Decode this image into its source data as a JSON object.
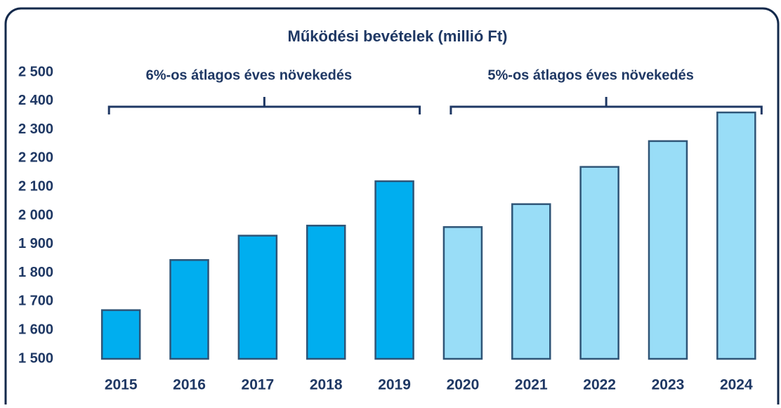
{
  "chart_data": {
    "type": "bar",
    "title": "Működési bevételek (millió Ft)",
    "categories": [
      "2015",
      "2016",
      "2017",
      "2018",
      "2019",
      "2020",
      "2021",
      "2022",
      "2023",
      "2024"
    ],
    "values": [
      1670,
      1845,
      1930,
      1965,
      2120,
      1960,
      2040,
      2170,
      2260,
      2360
    ],
    "colors": [
      "#00aeef",
      "#00aeef",
      "#00aeef",
      "#00aeef",
      "#00aeef",
      "#99ddf7",
      "#99ddf7",
      "#99ddf7",
      "#99ddf7",
      "#99ddf7"
    ],
    "ylim": [
      1500,
      2500
    ],
    "yticks": [
      {
        "value": 1500,
        "label": "1 500"
      },
      {
        "value": 1600,
        "label": "1 600"
      },
      {
        "value": 1700,
        "label": "1 700"
      },
      {
        "value": 1800,
        "label": "1 800"
      },
      {
        "value": 1900,
        "label": "1 900"
      },
      {
        "value": 2000,
        "label": "2 000"
      },
      {
        "value": 2100,
        "label": "2 100"
      },
      {
        "value": 2200,
        "label": "2 200"
      },
      {
        "value": 2300,
        "label": "2 300"
      },
      {
        "value": 2400,
        "label": "2 400"
      },
      {
        "value": 2500,
        "label": "2 500"
      }
    ],
    "grid": false,
    "annotations": [
      "6%-os átlagos éves növekedés",
      "5%-os átlagos éves növekedés"
    ]
  }
}
